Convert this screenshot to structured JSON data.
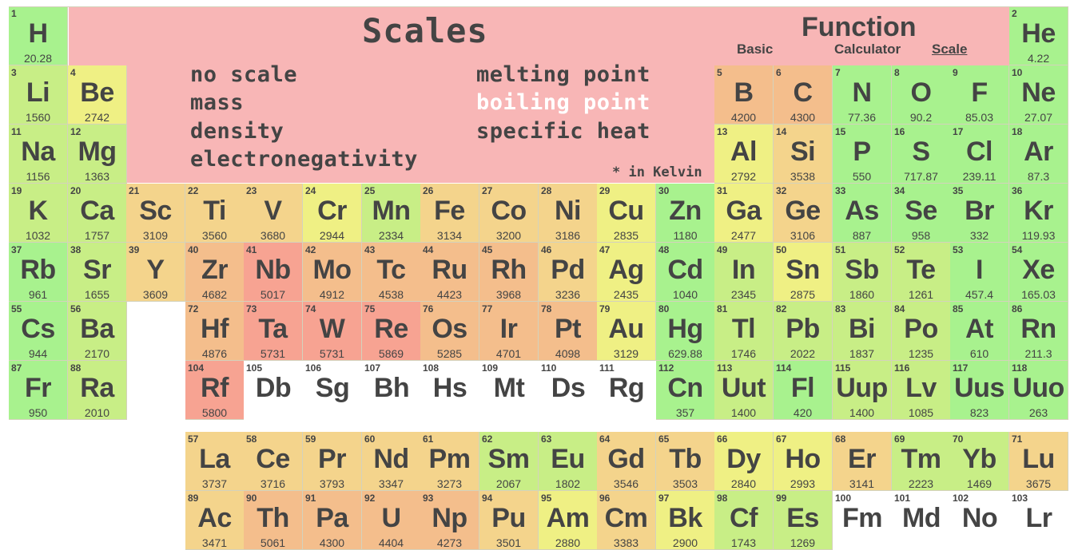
{
  "header": {
    "title": "Scales",
    "function_title": "Function",
    "tabs": [
      {
        "label": "Basic",
        "active": false
      },
      {
        "label": "Calculator",
        "active": false
      },
      {
        "label": "Scale",
        "active": true
      }
    ]
  },
  "scale_options": {
    "left": [
      "no scale",
      "mass",
      "density",
      "electronegativity"
    ],
    "right": [
      "melting point",
      "boiling point",
      "specific heat"
    ],
    "active": "boiling point",
    "note": "* in Kelvin"
  },
  "colors": {
    "panel": "#f8b6b6",
    "active_option": "#ffffff",
    "text": "#444444",
    "scale": [
      "#a8f28e",
      "#c8ee86",
      "#eff084",
      "#f4d48c",
      "#f4be8c",
      "#f7a392"
    ],
    "no_data": "#ffffff"
  },
  "elements": [
    {
      "n": "1",
      "s": "H",
      "v": "20.28",
      "c": "g"
    },
    {
      "n": "2",
      "s": "He",
      "v": "4.22",
      "c": "g"
    },
    {
      "n": "3",
      "s": "Li",
      "v": "1560",
      "c": "yg"
    },
    {
      "n": "4",
      "s": "Be",
      "v": "2742",
      "c": "y"
    },
    {
      "n": "5",
      "s": "B",
      "v": "4200",
      "c": "o"
    },
    {
      "n": "6",
      "s": "C",
      "v": "4300",
      "c": "o"
    },
    {
      "n": "7",
      "s": "N",
      "v": "77.36",
      "c": "g"
    },
    {
      "n": "8",
      "s": "O",
      "v": "90.2",
      "c": "g"
    },
    {
      "n": "9",
      "s": "F",
      "v": "85.03",
      "c": "g"
    },
    {
      "n": "10",
      "s": "Ne",
      "v": "27.07",
      "c": "g"
    },
    {
      "n": "11",
      "s": "Na",
      "v": "1156",
      "c": "yg"
    },
    {
      "n": "12",
      "s": "Mg",
      "v": "1363",
      "c": "yg"
    },
    {
      "n": "13",
      "s": "Al",
      "v": "2792",
      "c": "y"
    },
    {
      "n": "14",
      "s": "Si",
      "v": "3538",
      "c": "lo"
    },
    {
      "n": "15",
      "s": "P",
      "v": "550",
      "c": "g"
    },
    {
      "n": "16",
      "s": "S",
      "v": "717.87",
      "c": "g"
    },
    {
      "n": "17",
      "s": "Cl",
      "v": "239.11",
      "c": "g"
    },
    {
      "n": "18",
      "s": "Ar",
      "v": "87.3",
      "c": "g"
    },
    {
      "n": "19",
      "s": "K",
      "v": "1032",
      "c": "yg"
    },
    {
      "n": "20",
      "s": "Ca",
      "v": "1757",
      "c": "yg"
    },
    {
      "n": "21",
      "s": "Sc",
      "v": "3109",
      "c": "lo"
    },
    {
      "n": "22",
      "s": "Ti",
      "v": "3560",
      "c": "lo"
    },
    {
      "n": "23",
      "s": "V",
      "v": "3680",
      "c": "lo"
    },
    {
      "n": "24",
      "s": "Cr",
      "v": "2944",
      "c": "y"
    },
    {
      "n": "25",
      "s": "Mn",
      "v": "2334",
      "c": "yg"
    },
    {
      "n": "26",
      "s": "Fe",
      "v": "3134",
      "c": "lo"
    },
    {
      "n": "27",
      "s": "Co",
      "v": "3200",
      "c": "lo"
    },
    {
      "n": "28",
      "s": "Ni",
      "v": "3186",
      "c": "lo"
    },
    {
      "n": "29",
      "s": "Cu",
      "v": "2835",
      "c": "y"
    },
    {
      "n": "30",
      "s": "Zn",
      "v": "1180",
      "c": "g"
    },
    {
      "n": "31",
      "s": "Ga",
      "v": "2477",
      "c": "y"
    },
    {
      "n": "32",
      "s": "Ge",
      "v": "3106",
      "c": "lo"
    },
    {
      "n": "33",
      "s": "As",
      "v": "887",
      "c": "g"
    },
    {
      "n": "34",
      "s": "Se",
      "v": "958",
      "c": "g"
    },
    {
      "n": "35",
      "s": "Br",
      "v": "332",
      "c": "g"
    },
    {
      "n": "36",
      "s": "Kr",
      "v": "119.93",
      "c": "g"
    },
    {
      "n": "37",
      "s": "Rb",
      "v": "961",
      "c": "g"
    },
    {
      "n": "38",
      "s": "Sr",
      "v": "1655",
      "c": "yg"
    },
    {
      "n": "39",
      "s": "Y",
      "v": "3609",
      "c": "lo"
    },
    {
      "n": "40",
      "s": "Zr",
      "v": "4682",
      "c": "o"
    },
    {
      "n": "41",
      "s": "Nb",
      "v": "5017",
      "c": "r"
    },
    {
      "n": "42",
      "s": "Mo",
      "v": "4912",
      "c": "o"
    },
    {
      "n": "43",
      "s": "Tc",
      "v": "4538",
      "c": "o"
    },
    {
      "n": "44",
      "s": "Ru",
      "v": "4423",
      "c": "o"
    },
    {
      "n": "45",
      "s": "Rh",
      "v": "3968",
      "c": "o"
    },
    {
      "n": "46",
      "s": "Pd",
      "v": "3236",
      "c": "lo"
    },
    {
      "n": "47",
      "s": "Ag",
      "v": "2435",
      "c": "y"
    },
    {
      "n": "48",
      "s": "Cd",
      "v": "1040",
      "c": "g"
    },
    {
      "n": "49",
      "s": "In",
      "v": "2345",
      "c": "yg"
    },
    {
      "n": "50",
      "s": "Sn",
      "v": "2875",
      "c": "y"
    },
    {
      "n": "51",
      "s": "Sb",
      "v": "1860",
      "c": "yg"
    },
    {
      "n": "52",
      "s": "Te",
      "v": "1261",
      "c": "yg"
    },
    {
      "n": "53",
      "s": "I",
      "v": "457.4",
      "c": "g"
    },
    {
      "n": "54",
      "s": "Xe",
      "v": "165.03",
      "c": "g"
    },
    {
      "n": "55",
      "s": "Cs",
      "v": "944",
      "c": "g"
    },
    {
      "n": "56",
      "s": "Ba",
      "v": "2170",
      "c": "yg"
    },
    {
      "n": "72",
      "s": "Hf",
      "v": "4876",
      "c": "o"
    },
    {
      "n": "73",
      "s": "Ta",
      "v": "5731",
      "c": "r"
    },
    {
      "n": "74",
      "s": "W",
      "v": "5731",
      "c": "r"
    },
    {
      "n": "75",
      "s": "Re",
      "v": "5869",
      "c": "r"
    },
    {
      "n": "76",
      "s": "Os",
      "v": "5285",
      "c": "o"
    },
    {
      "n": "77",
      "s": "Ir",
      "v": "4701",
      "c": "o"
    },
    {
      "n": "78",
      "s": "Pt",
      "v": "4098",
      "c": "o"
    },
    {
      "n": "79",
      "s": "Au",
      "v": "3129",
      "c": "y"
    },
    {
      "n": "80",
      "s": "Hg",
      "v": "629.88",
      "c": "g"
    },
    {
      "n": "81",
      "s": "Tl",
      "v": "1746",
      "c": "yg"
    },
    {
      "n": "82",
      "s": "Pb",
      "v": "2022",
      "c": "yg"
    },
    {
      "n": "83",
      "s": "Bi",
      "v": "1837",
      "c": "yg"
    },
    {
      "n": "84",
      "s": "Po",
      "v": "1235",
      "c": "yg"
    },
    {
      "n": "85",
      "s": "At",
      "v": "610",
      "c": "g"
    },
    {
      "n": "86",
      "s": "Rn",
      "v": "211.3",
      "c": "g"
    },
    {
      "n": "87",
      "s": "Fr",
      "v": "950",
      "c": "g"
    },
    {
      "n": "88",
      "s": "Ra",
      "v": "2010",
      "c": "yg"
    },
    {
      "n": "104",
      "s": "Rf",
      "v": "5800",
      "c": "r"
    },
    {
      "n": "105",
      "s": "Db",
      "v": "",
      "c": "w"
    },
    {
      "n": "106",
      "s": "Sg",
      "v": "",
      "c": "w"
    },
    {
      "n": "107",
      "s": "Bh",
      "v": "",
      "c": "w"
    },
    {
      "n": "108",
      "s": "Hs",
      "v": "",
      "c": "w"
    },
    {
      "n": "109",
      "s": "Mt",
      "v": "",
      "c": "w"
    },
    {
      "n": "110",
      "s": "Ds",
      "v": "",
      "c": "w"
    },
    {
      "n": "111",
      "s": "Rg",
      "v": "",
      "c": "w"
    },
    {
      "n": "112",
      "s": "Cn",
      "v": "357",
      "c": "g"
    },
    {
      "n": "113",
      "s": "Uut",
      "v": "1400",
      "c": "yg"
    },
    {
      "n": "114",
      "s": "Fl",
      "v": "420",
      "c": "g"
    },
    {
      "n": "115",
      "s": "Uup",
      "v": "1400",
      "c": "yg"
    },
    {
      "n": "116",
      "s": "Lv",
      "v": "1085",
      "c": "yg"
    },
    {
      "n": "117",
      "s": "Uus",
      "v": "823",
      "c": "g"
    },
    {
      "n": "118",
      "s": "Uuo",
      "v": "263",
      "c": "g"
    },
    {
      "n": "57",
      "s": "La",
      "v": "3737",
      "c": "lo"
    },
    {
      "n": "58",
      "s": "Ce",
      "v": "3716",
      "c": "lo"
    },
    {
      "n": "59",
      "s": "Pr",
      "v": "3793",
      "c": "lo"
    },
    {
      "n": "60",
      "s": "Nd",
      "v": "3347",
      "c": "lo"
    },
    {
      "n": "61",
      "s": "Pm",
      "v": "3273",
      "c": "lo"
    },
    {
      "n": "62",
      "s": "Sm",
      "v": "2067",
      "c": "yg"
    },
    {
      "n": "63",
      "s": "Eu",
      "v": "1802",
      "c": "yg"
    },
    {
      "n": "64",
      "s": "Gd",
      "v": "3546",
      "c": "lo"
    },
    {
      "n": "65",
      "s": "Tb",
      "v": "3503",
      "c": "lo"
    },
    {
      "n": "66",
      "s": "Dy",
      "v": "2840",
      "c": "y"
    },
    {
      "n": "67",
      "s": "Ho",
      "v": "2993",
      "c": "y"
    },
    {
      "n": "68",
      "s": "Er",
      "v": "3141",
      "c": "lo"
    },
    {
      "n": "69",
      "s": "Tm",
      "v": "2223",
      "c": "yg"
    },
    {
      "n": "70",
      "s": "Yb",
      "v": "1469",
      "c": "yg"
    },
    {
      "n": "71",
      "s": "Lu",
      "v": "3675",
      "c": "lo"
    },
    {
      "n": "89",
      "s": "Ac",
      "v": "3471",
      "c": "lo"
    },
    {
      "n": "90",
      "s": "Th",
      "v": "5061",
      "c": "o"
    },
    {
      "n": "91",
      "s": "Pa",
      "v": "4300",
      "c": "o"
    },
    {
      "n": "92",
      "s": "U",
      "v": "4404",
      "c": "o"
    },
    {
      "n": "93",
      "s": "Np",
      "v": "4273",
      "c": "o"
    },
    {
      "n": "94",
      "s": "Pu",
      "v": "3501",
      "c": "lo"
    },
    {
      "n": "95",
      "s": "Am",
      "v": "2880",
      "c": "y"
    },
    {
      "n": "96",
      "s": "Cm",
      "v": "3383",
      "c": "lo"
    },
    {
      "n": "97",
      "s": "Bk",
      "v": "2900",
      "c": "y"
    },
    {
      "n": "98",
      "s": "Cf",
      "v": "1743",
      "c": "yg"
    },
    {
      "n": "99",
      "s": "Es",
      "v": "1269",
      "c": "yg"
    },
    {
      "n": "100",
      "s": "Fm",
      "v": "",
      "c": "w"
    },
    {
      "n": "101",
      "s": "Md",
      "v": "",
      "c": "w"
    },
    {
      "n": "102",
      "s": "No",
      "v": "",
      "c": "w"
    },
    {
      "n": "103",
      "s": "Lr",
      "v": "",
      "c": "w"
    }
  ]
}
